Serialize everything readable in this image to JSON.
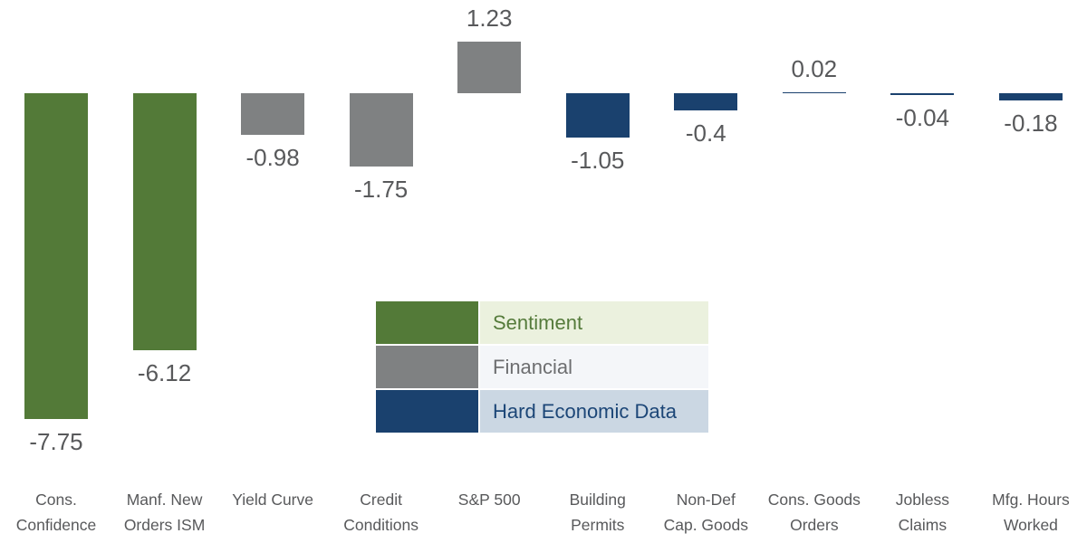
{
  "chart_data": {
    "type": "bar",
    "title": "",
    "xlabel": "",
    "ylabel": "",
    "ylim": [
      -8,
      1.5
    ],
    "grid": false,
    "axes_visible": false,
    "legend_position": "center-bottom",
    "categories": [
      "Cons. Confidence",
      "Manf. New Orders ISM",
      "Yield Curve",
      "Credit Conditions",
      "S&P 500",
      "Building Permits",
      "Non-Def Cap. Goods",
      "Cons. Goods Orders",
      "Jobless Claims",
      "Mfg. Hours Worked"
    ],
    "categories_lines": [
      [
        "Cons.",
        "Confidence"
      ],
      [
        "Manf. New",
        "Orders ISM"
      ],
      [
        "Yield Curve"
      ],
      [
        "Credit",
        "Conditions"
      ],
      [
        "S&P 500"
      ],
      [
        "Building",
        "Permits"
      ],
      [
        "Non-Def",
        "Cap. Goods"
      ],
      [
        "Cons. Goods",
        "Orders"
      ],
      [
        "Jobless",
        "Claims"
      ],
      [
        "Mfg. Hours",
        "Worked"
      ]
    ],
    "values": [
      -7.75,
      -6.12,
      -0.98,
      -1.75,
      1.23,
      -1.05,
      -0.4,
      0.02,
      -0.04,
      -0.18
    ],
    "value_labels": [
      "-7.75",
      "-6.12",
      "-0.98",
      "-1.75",
      "1.23",
      "-1.05",
      "-0.4",
      "0.02",
      "-0.04",
      "-0.18"
    ],
    "groups": [
      "Sentiment",
      "Sentiment",
      "Financial",
      "Financial",
      "Financial",
      "Hard Economic Data",
      "Hard Economic Data",
      "Hard Economic Data",
      "Hard Economic Data",
      "Hard Economic Data"
    ],
    "group_colors": {
      "Sentiment": "#537A38",
      "Financial": "#7F8182",
      "Hard Economic Data": "#1A416E"
    }
  },
  "legend": {
    "items": [
      {
        "label": "Sentiment",
        "swatch": "#537A38",
        "bg": "#EBF1DE",
        "text_color": "#557B3B"
      },
      {
        "label": "Financial",
        "swatch": "#7F8182",
        "bg": "#F4F6F9",
        "text_color": "#6D6E70"
      },
      {
        "label": "Hard Economic Data",
        "swatch": "#1A416E",
        "bg": "#CBD7E3",
        "text_color": "#1C4677"
      }
    ]
  },
  "text_color": "#58595B"
}
